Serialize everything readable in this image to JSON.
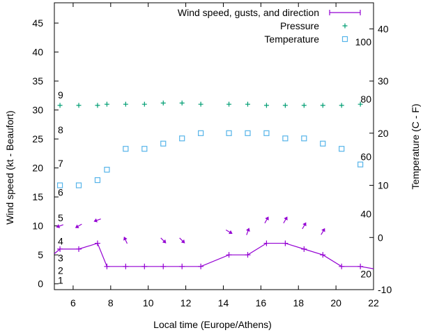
{
  "chart_data": {
    "type": "line",
    "xlabel": "Local time (Europe/Athens)",
    "ylabel": "Wind speed (kt - Beaufort)",
    "y2label": "Temperature (C - F)",
    "xlim": [
      5,
      22
    ],
    "ylim": [
      -1,
      48.5
    ],
    "y2lim": [
      -10,
      45
    ],
    "x_ticks": [
      6,
      8,
      10,
      12,
      14,
      16,
      18,
      20,
      22
    ],
    "y_ticks": [
      0,
      5,
      10,
      15,
      20,
      25,
      30,
      35,
      40,
      45
    ],
    "y2_ticks": [
      -10,
      0,
      10,
      20,
      30,
      40
    ],
    "beaufort_labels": [
      {
        "label": "1",
        "y": 0.6
      },
      {
        "label": "2",
        "y": 2.3
      },
      {
        "label": "3",
        "y": 4.5
      },
      {
        "label": "4",
        "y": 7.4
      },
      {
        "label": "5",
        "y": 11.4
      },
      {
        "label": "6",
        "y": 15.8
      },
      {
        "label": "7",
        "y": 20.8
      },
      {
        "label": "8",
        "y": 26.6
      },
      {
        "label": "9",
        "y": 32.6
      }
    ],
    "fahrenheit_labels": [
      {
        "label": "20",
        "y": -7
      },
      {
        "label": "40",
        "y": 4.5
      },
      {
        "label": "60",
        "y": 15.5
      },
      {
        "label": "80",
        "y": 26.5
      },
      {
        "label": "100",
        "y": 37.5
      }
    ],
    "legend": [
      "Wind speed, gusts, and direction",
      "Pressure",
      "Temperature"
    ],
    "legend_position": "top-right",
    "series": [
      {
        "name": "Wind speed, gusts, and direction",
        "color": "#9400d3",
        "x": [
          5.3,
          6.3,
          7.3,
          7.8,
          8.8,
          9.8,
          10.8,
          11.8,
          12.8,
          14.3,
          15.3,
          16.3,
          17.3,
          18.3,
          19.3,
          20.3,
          21.3
        ],
        "y": [
          6,
          6,
          7,
          3,
          3,
          3,
          3,
          3,
          3,
          5,
          5,
          7,
          7,
          6,
          5,
          3,
          3
        ]
      },
      {
        "name": "Pressure",
        "color": "#009e73",
        "x": [
          5.3,
          6.3,
          7.3,
          7.8,
          8.8,
          9.8,
          10.8,
          11.8,
          12.8,
          14.3,
          15.3,
          16.3,
          17.3,
          18.3,
          19.3,
          20.3,
          21.3
        ],
        "y": [
          30.8,
          30.8,
          30.8,
          31.0,
          31.0,
          31.0,
          31.2,
          31.2,
          31.0,
          31.0,
          31.0,
          30.8,
          30.8,
          30.8,
          30.8,
          30.8,
          31.0
        ]
      },
      {
        "name": "Temperature",
        "color": "#56b4e9",
        "x": [
          5.3,
          6.3,
          7.3,
          7.8,
          8.8,
          9.8,
          10.8,
          11.8,
          12.8,
          14.3,
          15.3,
          16.3,
          17.3,
          18.3,
          19.3,
          20.3,
          21.3
        ],
        "y": [
          10,
          10,
          11,
          13,
          17,
          17,
          18,
          19,
          20,
          20,
          20,
          20,
          19,
          19,
          18,
          17,
          14
        ]
      }
    ],
    "wind_direction_arrows": [
      {
        "x": 5.3,
        "y": 10,
        "angle": 200
      },
      {
        "x": 6.3,
        "y": 10,
        "angle": 210
      },
      {
        "x": 7.3,
        "y": 11,
        "angle": 200
      },
      {
        "x": 8.8,
        "y": 7.5,
        "angle": 115
      },
      {
        "x": 10.8,
        "y": 7.5,
        "angle": 315
      },
      {
        "x": 11.8,
        "y": 7.5,
        "angle": 315
      },
      {
        "x": 14.3,
        "y": 9,
        "angle": 330
      },
      {
        "x": 15.3,
        "y": 9,
        "angle": 70
      },
      {
        "x": 16.3,
        "y": 11,
        "angle": 60
      },
      {
        "x": 17.3,
        "y": 11,
        "angle": 60
      },
      {
        "x": 18.3,
        "y": 10,
        "angle": 60
      },
      {
        "x": 19.3,
        "y": 9,
        "angle": 60
      }
    ]
  }
}
